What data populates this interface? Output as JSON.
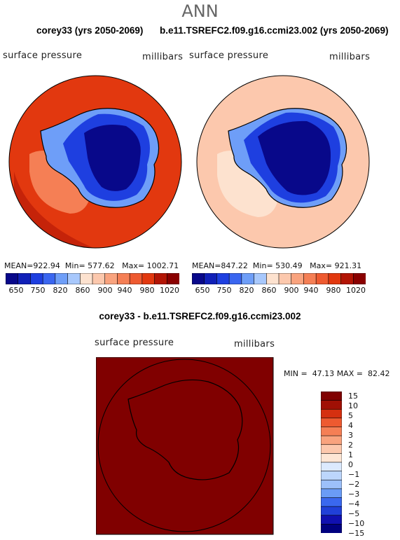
{
  "main_title": "ANN",
  "colors": {
    "abs_levels": [
      "#08088a",
      "#1020b8",
      "#1e3fe0",
      "#3a66f0",
      "#6e9ef8",
      "#a8c8fc",
      "#fde2cf",
      "#fcc8ad",
      "#f9a37e",
      "#f57f55",
      "#ee5a30",
      "#e2380f",
      "#b31505",
      "#8a0000"
    ],
    "diff_levels": [
      "#00007f",
      "#1010b0",
      "#2040d8",
      "#3a68ee",
      "#6a9cf6",
      "#9cc0fa",
      "#bcd6fc",
      "#dceafe",
      "#fde6d5",
      "#fcc8ad",
      "#f9a37e",
      "#f57f55",
      "#ee5a30",
      "#d53010",
      "#a01005",
      "#800000"
    ]
  },
  "chart_data": [
    {
      "type": "heatmap",
      "title": "corey33 (yrs 2050-2069)",
      "left_label": "surface pressure",
      "right_label": "millibars",
      "stats": {
        "mean_label": "MEAN=",
        "mean": "922.94",
        "min_label": "Min=",
        "min": "577.62",
        "max_label": "Max=",
        "max": "1002.71"
      },
      "levels": [
        "650",
        "750",
        "820",
        "860",
        "900",
        "940",
        "980",
        "1020"
      ]
    },
    {
      "type": "heatmap",
      "title": "b.e11.TSREFC2.f09.g16.ccmi23.002 (yrs 2050-2069)",
      "left_label": "surface pressure",
      "right_label": "millibars",
      "stats": {
        "mean_label": "MEAN=",
        "mean": "847.22",
        "min_label": "Min=",
        "min": "530.49",
        "max_label": "Max=",
        "max": "921.31"
      },
      "levels": [
        "650",
        "750",
        "820",
        "860",
        "900",
        "940",
        "980",
        "1020"
      ]
    },
    {
      "type": "heatmap",
      "title": "corey33 - b.e11.TSREFC2.f09.g16.ccmi23.002",
      "left_label": "surface pressure",
      "right_label": "millibars",
      "stats": {
        "min_label": "MIN =",
        "min": "47.13",
        "max_label": "MAX =",
        "max": "82.42"
      },
      "levels": [
        "15",
        "10",
        "5",
        "4",
        "3",
        "2",
        "1",
        "0",
        "−1",
        "−2",
        "−3",
        "−4",
        "−5",
        "−10",
        "−15"
      ]
    }
  ]
}
